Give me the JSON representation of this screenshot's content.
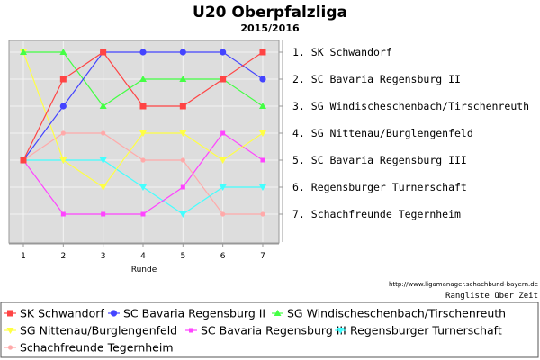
{
  "chart_data": {
    "type": "line",
    "title": "U20 Oberpfalzliga",
    "subtitle": "2015/2016",
    "xlabel": "Runde",
    "ylabel": "",
    "x": [
      1,
      2,
      3,
      4,
      5,
      6,
      7
    ],
    "ylim": [
      1,
      7
    ],
    "y_reversed": true,
    "grid": true,
    "legend": "bottom",
    "final_ranking_labels": [
      "1. SK Schwandorf",
      "2. SC Bavaria Regensburg II",
      "3. SG Windischeschenbach/Tirschenreuth",
      "4. SG Nittenau/Burglengenfeld",
      "5. SC Bavaria Regensburg III",
      "6. Regensburger Turnerschaft",
      "7. Schachfreunde Tegernheim"
    ],
    "source": "http://www.ligamanager.schachbund-bayern.de",
    "caption": "Rangliste über Zeit",
    "series": [
      {
        "name": "SK Schwandorf",
        "color": "#ff4444",
        "marker": "square",
        "values": [
          5,
          2,
          1,
          3,
          3,
          2,
          1
        ]
      },
      {
        "name": "SC Bavaria Regensburg II",
        "color": "#4444ff",
        "marker": "circle",
        "values": [
          5,
          3,
          1,
          1,
          1,
          1,
          2
        ]
      },
      {
        "name": "SG Windischeschenbach/Tirschenreuth",
        "color": "#44ff44",
        "marker": "triangle-up",
        "values": [
          1,
          1,
          3,
          2,
          2,
          2,
          3
        ]
      },
      {
        "name": "SG Nittenau/Burglengenfeld",
        "color": "#ffff44",
        "marker": "triangle-down",
        "values": [
          1,
          5,
          6,
          4,
          4,
          5,
          4
        ]
      },
      {
        "name": "SC Bavaria Regensburg III",
        "color": "#ff44ff",
        "marker": "square-small",
        "values": [
          5,
          7,
          7,
          7,
          6,
          4,
          5
        ]
      },
      {
        "name": "Regensburger Turnerschaft",
        "color": "#44ffff",
        "marker": "triangle-down",
        "values": [
          5,
          5,
          5,
          6,
          7,
          6,
          6
        ]
      },
      {
        "name": "Schachfreunde Tegernheim",
        "color": "#ffaaaa",
        "marker": "circle-small",
        "values": [
          5,
          4,
          4,
          5,
          5,
          7,
          7
        ]
      }
    ]
  }
}
